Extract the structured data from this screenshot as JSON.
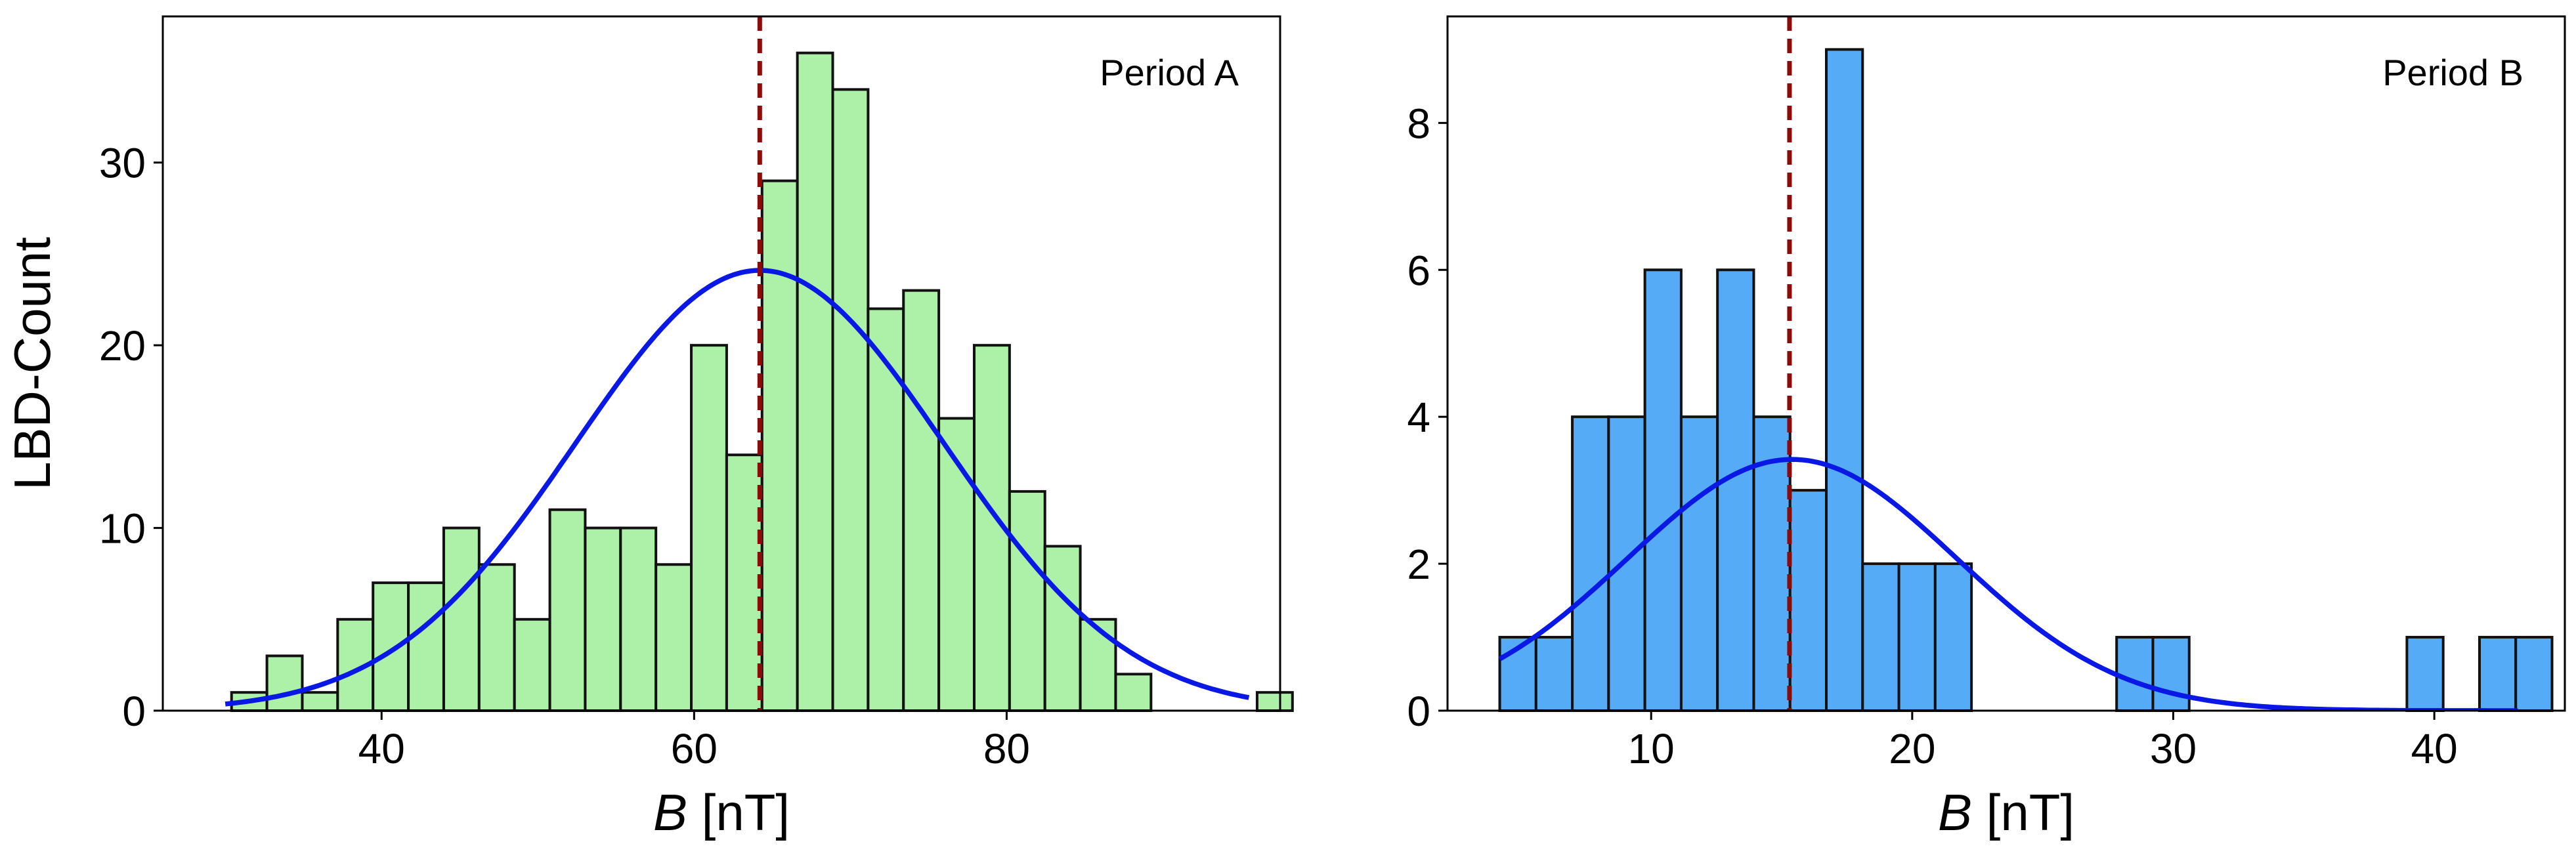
{
  "chart_data": [
    {
      "type": "bar",
      "annotation": "Period A",
      "ylabel": "LBD-Count",
      "xlabel_var": "B",
      "xlabel_unit": " [nT]",
      "xlim": [
        26,
        97.5
      ],
      "ylim": [
        0,
        38
      ],
      "xticks": [
        40,
        60,
        80
      ],
      "yticks": [
        0,
        10,
        20,
        30
      ],
      "xtick_labels": [
        "40",
        "60",
        "80"
      ],
      "ytick_labels": [
        "0",
        "10",
        "20",
        "30"
      ],
      "bar_color": "#adf0a8",
      "fit_color": "#0a18e6",
      "mean_line_color": "#8b0a0a",
      "bins": {
        "start": 30.4,
        "width": 2.263
      },
      "counts": [
        1,
        3,
        1,
        5,
        7,
        7,
        10,
        8,
        5,
        11,
        10,
        10,
        8,
        20,
        14,
        29,
        36,
        34,
        22,
        23,
        16,
        20,
        12,
        9,
        5,
        2,
        0,
        0,
        0,
        1
      ],
      "mean": 64.2,
      "fit": {
        "type": "gaussian",
        "amplitude": 24.1,
        "mu": 64.2,
        "sigma": 11.8,
        "x_range": [
          30,
          95.5
        ]
      }
    },
    {
      "type": "bar",
      "annotation": "Period B",
      "ylabel": "",
      "xlabel_var": "B",
      "xlabel_unit": " [nT]",
      "xlim": [
        2.2,
        45
      ],
      "ylim": [
        0,
        9.45
      ],
      "xticks": [
        10,
        20,
        30,
        40
      ],
      "yticks": [
        0,
        2,
        4,
        6,
        8
      ],
      "xtick_labels": [
        "10",
        "20",
        "30",
        "40"
      ],
      "ytick_labels": [
        "0",
        "2",
        "4",
        "6",
        "8"
      ],
      "bar_color": "#56abf7",
      "fit_color": "#0a18e6",
      "mean_line_color": "#8b0a0a",
      "bins": {
        "start": 4.2,
        "width": 1.39
      },
      "counts": [
        1,
        1,
        4,
        4,
        6,
        4,
        6,
        4,
        3,
        9,
        2,
        2,
        2,
        0,
        0,
        0,
        0,
        1,
        1,
        0,
        0,
        0,
        0,
        0,
        0,
        1,
        0,
        1,
        1
      ],
      "mean": 15.3,
      "fit": {
        "type": "gaussian",
        "amplitude": 3.42,
        "mu": 15.4,
        "sigma": 6.3,
        "x_range": [
          4.2,
          43.2
        ]
      }
    }
  ]
}
